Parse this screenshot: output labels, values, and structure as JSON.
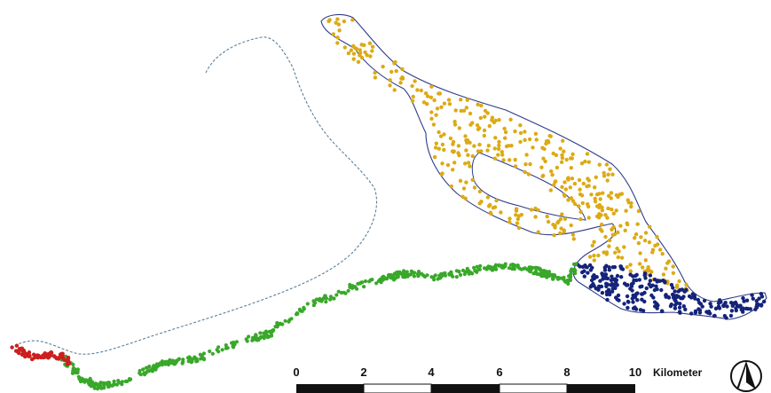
{
  "map": {
    "type": "point-distribution map",
    "legend_present": false,
    "colors": {
      "red_points": "#cc1f1f",
      "green_points": "#39a82a",
      "navy_points": "#14237a",
      "yellow_points": "#dcaa14",
      "dashed_outline": "#5a7f9a",
      "solid_outline": "#2d3a8a"
    }
  },
  "scale_bar": {
    "tick_labels": [
      "0",
      "2",
      "4",
      "6",
      "8",
      "10"
    ],
    "unit": "Kilometer"
  },
  "north_arrow": {
    "icon": "north-arrow-icon"
  }
}
